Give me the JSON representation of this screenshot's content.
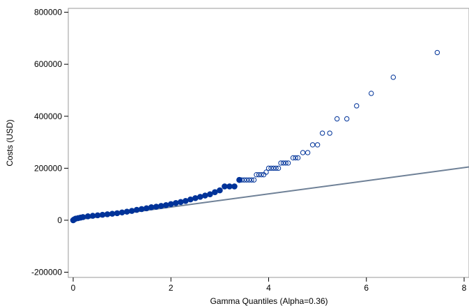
{
  "chart_data": {
    "type": "scatter",
    "title": "",
    "xlabel": "Gamma Quantiles (Alpha=0.36)",
    "ylabel": "Costs (USD)",
    "xlim": [
      -0.1,
      8.1
    ],
    "ylim": [
      -220000,
      815000
    ],
    "x_ticks": [
      0,
      2,
      4,
      6,
      8
    ],
    "y_ticks": [
      -200000,
      0,
      200000,
      400000,
      600000,
      800000
    ],
    "x_tick_labels": [
      "0",
      "2",
      "4",
      "6",
      "8"
    ],
    "y_tick_labels": [
      "-200000",
      "0",
      "200000",
      "400000",
      "600000",
      "800000"
    ],
    "grid": false,
    "legend": "none",
    "colors": {
      "marker": "#003399",
      "fit_line": "#6f8197",
      "frame": "#9a9a9a"
    },
    "reference_line": {
      "x": [
        0,
        8.1
      ],
      "y": [
        0,
        205000
      ]
    },
    "points": {
      "x": [
        0.0,
        0.02,
        0.05,
        0.1,
        0.15,
        0.2,
        0.3,
        0.4,
        0.5,
        0.6,
        0.7,
        0.8,
        0.9,
        1.0,
        1.1,
        1.2,
        1.3,
        1.4,
        1.5,
        1.6,
        1.7,
        1.8,
        1.9,
        2.0,
        2.1,
        2.2,
        2.3,
        2.4,
        2.5,
        2.6,
        2.7,
        2.8,
        2.9,
        3.0,
        3.1,
        3.2,
        3.3,
        3.4,
        3.45,
        3.5,
        3.55,
        3.6,
        3.65,
        3.7,
        3.75,
        3.8,
        3.85,
        3.9,
        3.95,
        4.0,
        4.05,
        4.1,
        4.15,
        4.2,
        4.25,
        4.3,
        4.35,
        4.4,
        4.5,
        4.55,
        4.6,
        4.7,
        4.8,
        4.9,
        5.0,
        5.1,
        5.25,
        5.4,
        5.6,
        5.8,
        6.1,
        6.55,
        7.45
      ],
      "y": [
        0,
        3000,
        6000,
        8000,
        10000,
        12000,
        15000,
        17000,
        19000,
        21000,
        23000,
        25000,
        27000,
        30000,
        33000,
        36000,
        40000,
        43000,
        46000,
        50000,
        52000,
        55000,
        58000,
        62000,
        66000,
        70000,
        74000,
        80000,
        85000,
        90000,
        95000,
        100000,
        108000,
        115000,
        130000,
        130000,
        130000,
        155000,
        155000,
        155000,
        155000,
        155000,
        155000,
        155000,
        175000,
        175000,
        175000,
        175000,
        185000,
        200000,
        200000,
        200000,
        200000,
        200000,
        220000,
        220000,
        220000,
        220000,
        240000,
        240000,
        240000,
        260000,
        260000,
        290000,
        290000,
        335000,
        335000,
        390000,
        390000,
        440000,
        488000,
        550000,
        645000
      ]
    }
  }
}
